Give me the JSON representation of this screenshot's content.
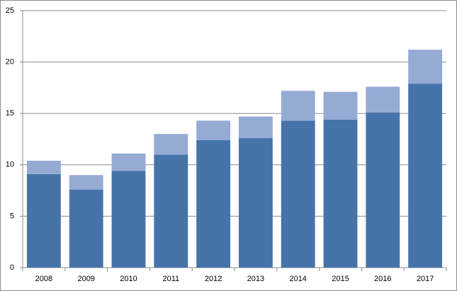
{
  "chart_data": {
    "type": "stacked-bar",
    "categories": [
      "2008",
      "2009",
      "2010",
      "2011",
      "2012",
      "2013",
      "2014",
      "2015",
      "2016",
      "2017"
    ],
    "series": [
      {
        "color": "#4674aa",
        "values": [
          9.1,
          7.6,
          9.4,
          11.0,
          12.4,
          12.6,
          14.3,
          14.4,
          15.1,
          17.9
        ]
      },
      {
        "color": "#95abd4",
        "values": [
          1.3,
          1.4,
          1.7,
          2.0,
          1.9,
          2.1,
          2.9,
          2.7,
          2.5,
          3.3
        ]
      }
    ],
    "ylim": [
      0,
      25
    ],
    "yticks": [
      0,
      5,
      10,
      15,
      20,
      25
    ],
    "grid": true
  }
}
